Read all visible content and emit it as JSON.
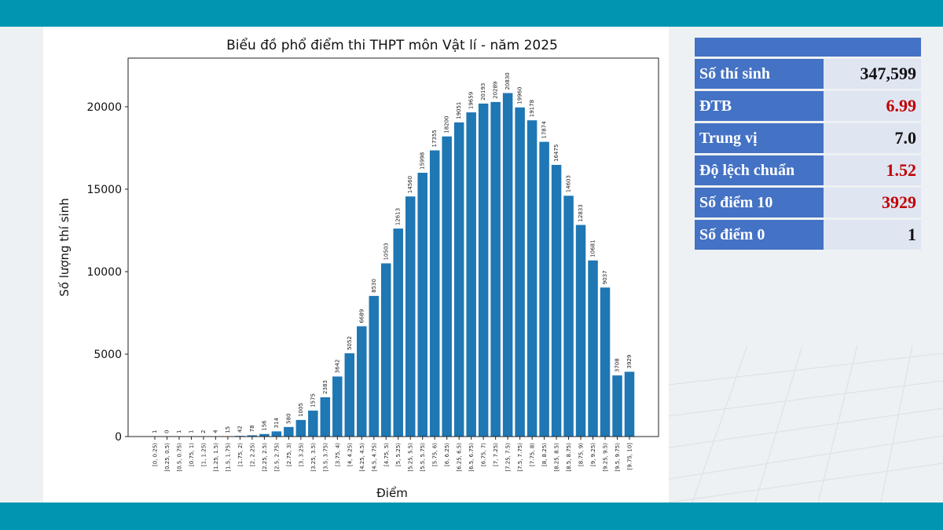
{
  "chart_data": {
    "type": "bar",
    "title": "Biểu đồ phổ điểm thi THPT môn Vật lí - năm 2025",
    "xlabel": "Điểm",
    "ylabel": "Số lượng thí sinh",
    "ylim": [
      0,
      22950
    ],
    "yticks": [
      0,
      5000,
      10000,
      15000,
      20000
    ],
    "grid": false,
    "bar_color": "#1f77b4",
    "categories": [
      "[0, 0.25)",
      "[0.25, 0.5)",
      "[0.5, 0.75)",
      "[0.75, 1)",
      "[1, 1.25)",
      "[1.25, 1.5)",
      "[1.5, 1.75)",
      "[1.75, 2)",
      "[2, 2.25)",
      "[2.25, 2.5)",
      "[2.5, 2.75)",
      "[2.75, 3)",
      "[3, 3.25)",
      "[3.25, 3.5)",
      "[3.5, 3.75)",
      "[3.75, 4)",
      "[4, 4.25)",
      "[4.25, 4.5)",
      "[4.5, 4.75)",
      "[4.75, 5)",
      "[5, 5.25)",
      "[5.25, 5.5)",
      "[5.5, 5.75)",
      "[5.75, 6)",
      "[6, 6.25)",
      "[6.25, 6.5)",
      "[6.5, 6.75)",
      "[6.75, 7)",
      "[7, 7.25)",
      "[7.25, 7.5)",
      "[7.5, 7.75)",
      "[7.75, 8)",
      "[8, 8.25)",
      "[8.25, 8.5)",
      "[8.5, 8.75)",
      "[8.75, 9)",
      "[9, 9.25)",
      "[9.25, 9.5)",
      "[9.5, 9.75)",
      "[9.75, 10]"
    ],
    "values": [
      1,
      0,
      1,
      1,
      2,
      4,
      15,
      42,
      78,
      156,
      314,
      580,
      1005,
      1575,
      2383,
      3642,
      5052,
      6689,
      8530,
      10503,
      12613,
      14560,
      15998,
      17355,
      18200,
      19051,
      19659,
      20193,
      20289,
      20830,
      19960,
      19178,
      17874,
      16475,
      14603,
      12833,
      10681,
      9037,
      3708,
      3929
    ]
  },
  "stats": {
    "rows": [
      {
        "label": "Số thí sinh",
        "value": "347,599",
        "highlight": false
      },
      {
        "label": "ĐTB",
        "value": "6.99",
        "highlight": true
      },
      {
        "label": "Trung vị",
        "value": "7.0",
        "highlight": false
      },
      {
        "label": "Độ lệch chuẩn",
        "value": "1.52",
        "highlight": true
      },
      {
        "label": "Số điểm 10",
        "value": "3929",
        "highlight": true
      },
      {
        "label": "Số điểm 0",
        "value": "1",
        "highlight": false
      }
    ],
    "highlight_color": "#c00000",
    "header_color": "#4472c4"
  }
}
